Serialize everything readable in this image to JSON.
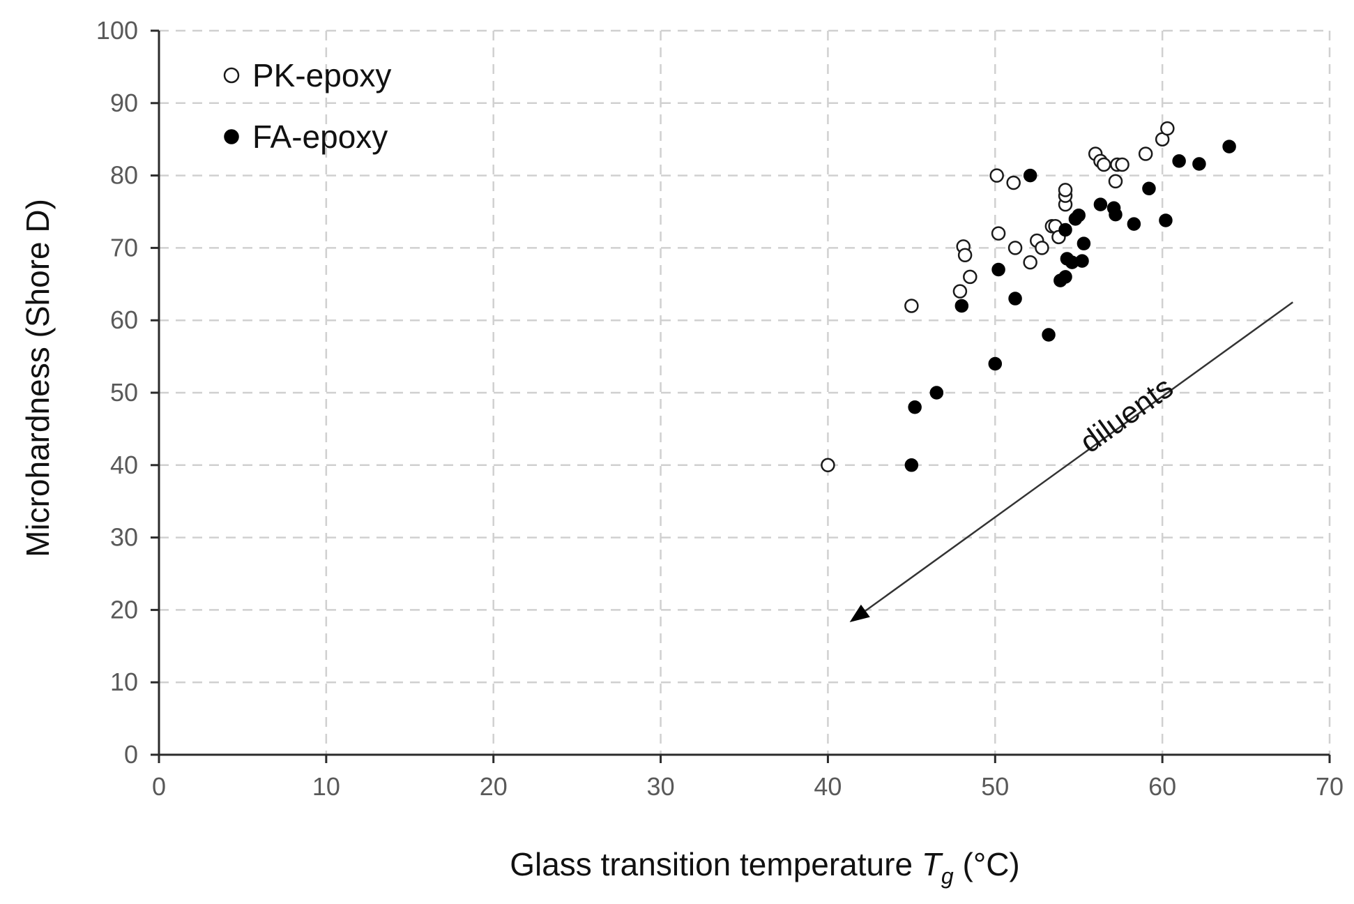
{
  "chart_data": {
    "type": "scatter",
    "title": "",
    "xlabel": "Glass transition temperature",
    "xlabel_symbol": "T",
    "xlabel_subscript": "g",
    "xlabel_unit": "(°C)",
    "ylabel": "Microhardness (Shore D)",
    "xlim": [
      0,
      70
    ],
    "ylim": [
      0,
      100
    ],
    "x_ticks": [
      0,
      10,
      20,
      30,
      40,
      50,
      60,
      70
    ],
    "y_ticks": [
      0,
      10,
      20,
      30,
      40,
      50,
      60,
      70,
      80,
      90,
      100
    ],
    "grid": true,
    "legend_position": "top-left",
    "series": [
      {
        "name": "PK-epoxy",
        "marker": "open-circle",
        "color": "#000000",
        "points": [
          [
            40,
            40
          ],
          [
            45,
            62
          ],
          [
            47.9,
            64
          ],
          [
            48.1,
            70.2
          ],
          [
            48.2,
            69
          ],
          [
            48.5,
            66
          ],
          [
            50.1,
            80
          ],
          [
            50.2,
            72
          ],
          [
            51.1,
            79
          ],
          [
            51.2,
            70
          ],
          [
            52.1,
            68
          ],
          [
            52.5,
            71
          ],
          [
            52.8,
            70
          ],
          [
            53.4,
            73
          ],
          [
            53.6,
            73
          ],
          [
            53.8,
            71.5
          ],
          [
            54.2,
            76
          ],
          [
            54.2,
            77.2
          ],
          [
            54.2,
            78
          ],
          [
            56,
            83
          ],
          [
            56.3,
            82
          ],
          [
            56.5,
            81.5
          ],
          [
            57.2,
            79.2
          ],
          [
            57.3,
            81.5
          ],
          [
            57.6,
            81.5
          ],
          [
            59,
            83
          ],
          [
            60,
            85
          ],
          [
            60.3,
            86.5
          ]
        ]
      },
      {
        "name": "FA-epoxy",
        "marker": "filled-circle",
        "color": "#000000",
        "points": [
          [
            45,
            40
          ],
          [
            45.2,
            48
          ],
          [
            46.5,
            50
          ],
          [
            48,
            62
          ],
          [
            50,
            54
          ],
          [
            50.2,
            67
          ],
          [
            51.2,
            63
          ],
          [
            52.1,
            80
          ],
          [
            53.2,
            58
          ],
          [
            53.9,
            65.5
          ],
          [
            54.2,
            66
          ],
          [
            54.2,
            72.5
          ],
          [
            54.3,
            68.5
          ],
          [
            54.6,
            68
          ],
          [
            54.8,
            74
          ],
          [
            55,
            74.5
          ],
          [
            55.2,
            68.2
          ],
          [
            55.3,
            70.6
          ],
          [
            56.3,
            76
          ],
          [
            57.1,
            75.5
          ],
          [
            57.2,
            74.6
          ],
          [
            58.3,
            73.3
          ],
          [
            59.2,
            78.2
          ],
          [
            60.2,
            73.8
          ],
          [
            61,
            82
          ],
          [
            62.2,
            81.6
          ],
          [
            64,
            84
          ]
        ]
      }
    ],
    "annotations": [
      {
        "text": "diluents",
        "type": "arrow",
        "from": [
          67.8,
          62.5
        ],
        "to": [
          41.3,
          18.3
        ]
      }
    ]
  }
}
